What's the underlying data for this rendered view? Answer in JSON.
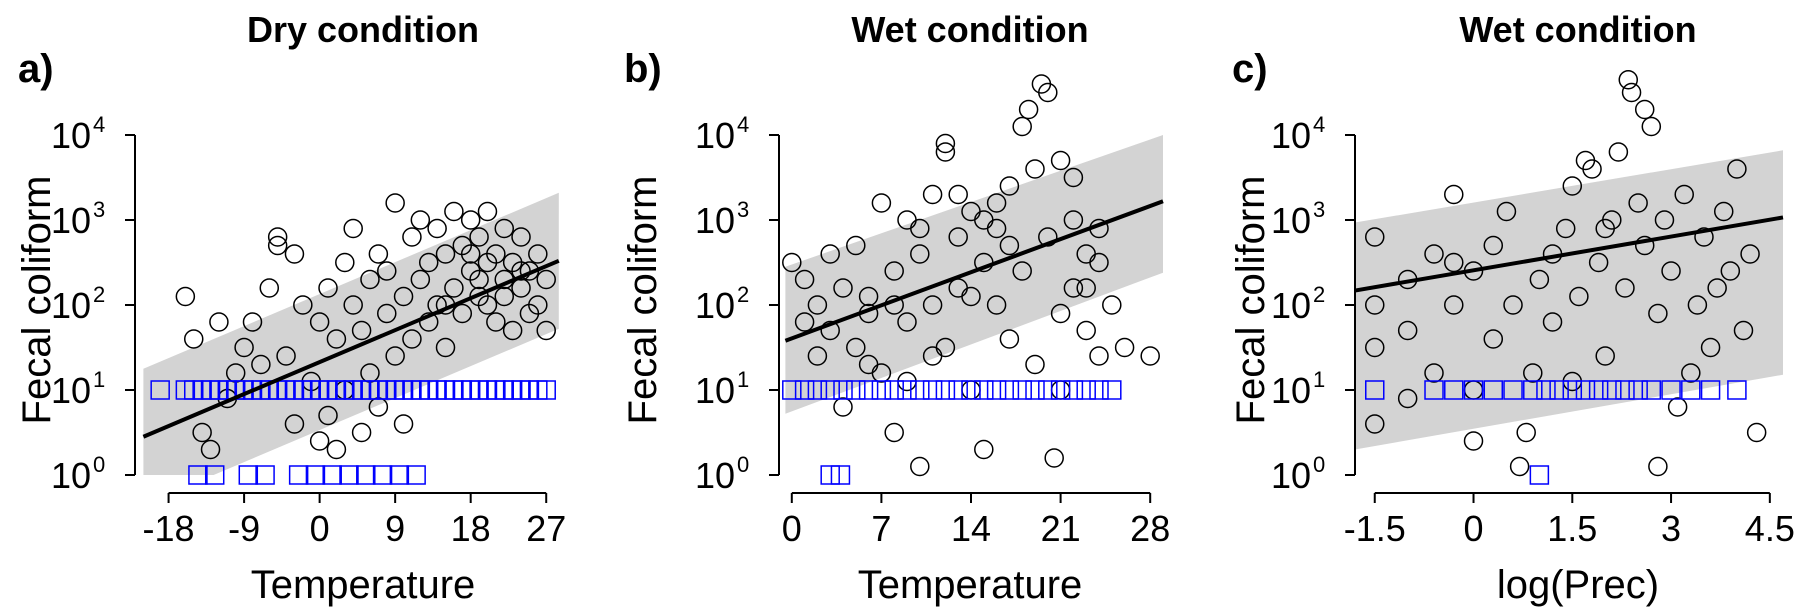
{
  "chart_data": [
    {
      "type": "scatter",
      "letter": "a)",
      "title": "Dry condition",
      "xlabel": "Temperature",
      "ylabel": "Fecal coliform",
      "xlim": [
        -22,
        29
      ],
      "ylim": [
        0,
        4
      ],
      "y_scale": "log10",
      "x_ticks": [
        -18,
        -9,
        0,
        9,
        18,
        27
      ],
      "x_tick_labels": [
        "-18",
        "-9",
        "0",
        "9",
        "18",
        "27"
      ],
      "y_ticks": [
        0,
        1,
        2,
        3,
        4
      ],
      "y_tick_base": "10",
      "y_tick_exponents": [
        "0",
        "1",
        "2",
        "3",
        "4"
      ],
      "fit_line": {
        "x": [
          -21,
          28.5
        ],
        "y": [
          0.45,
          2.52
        ]
      },
      "band_lower": {
        "x": [
          -21,
          28.5
        ],
        "y": [
          -0.35,
          1.72
        ]
      },
      "band_upper": {
        "x": [
          -21,
          28.5
        ],
        "y": [
          1.25,
          3.32
        ]
      },
      "censored_y": 1.0,
      "censored_x": [
        -19,
        -16,
        -15,
        -14,
        -13,
        -12,
        -11,
        -10,
        -9,
        -8,
        -7,
        -6,
        -5,
        -4,
        -3,
        -2,
        -1,
        0,
        1,
        2,
        3,
        4,
        5,
        6,
        7,
        8,
        9,
        10,
        11,
        12,
        13,
        14,
        15,
        16,
        17,
        18,
        19,
        20,
        21,
        22,
        23,
        24,
        25,
        26,
        27
      ],
      "censored_low_y": 0.0,
      "censored_low_x": [
        -14.5,
        -12.5,
        -8.5,
        -6.5,
        -2.5,
        -0.5,
        1.5,
        3.5,
        5.5,
        7.5,
        9.5,
        11.5
      ],
      "points": [
        [
          -16,
          2.1
        ],
        [
          -15,
          1.6
        ],
        [
          -13,
          0.3
        ],
        [
          -14,
          0.5
        ],
        [
          -11,
          0.9
        ],
        [
          -10,
          1.2
        ],
        [
          -9,
          1.5
        ],
        [
          -8,
          1.8
        ],
        [
          -7,
          1.3
        ],
        [
          -6,
          2.2
        ],
        [
          -5,
          2.7
        ],
        [
          -5,
          2.8
        ],
        [
          -4,
          1.4
        ],
        [
          -3,
          0.6
        ],
        [
          -2,
          2.0
        ],
        [
          -1,
          1.1
        ],
        [
          0,
          0.4
        ],
        [
          0,
          1.8
        ],
        [
          1,
          2.2
        ],
        [
          1,
          0.7
        ],
        [
          2,
          1.6
        ],
        [
          2,
          0.3
        ],
        [
          3,
          2.5
        ],
        [
          3,
          1.0
        ],
        [
          4,
          2.0
        ],
        [
          4,
          2.9
        ],
        [
          5,
          1.7
        ],
        [
          5,
          0.5
        ],
        [
          6,
          2.3
        ],
        [
          6,
          1.2
        ],
        [
          7,
          2.6
        ],
        [
          7,
          0.8
        ],
        [
          8,
          1.9
        ],
        [
          8,
          2.4
        ],
        [
          9,
          3.2
        ],
        [
          9,
          1.4
        ],
        [
          10,
          2.1
        ],
        [
          10,
          0.6
        ],
        [
          11,
          2.8
        ],
        [
          11,
          1.6
        ],
        [
          12,
          2.3
        ],
        [
          12,
          3.0
        ],
        [
          13,
          1.8
        ],
        [
          13,
          2.5
        ],
        [
          14,
          2.0
        ],
        [
          14,
          2.9
        ],
        [
          15,
          1.5
        ],
        [
          15,
          2.6
        ],
        [
          16,
          2.2
        ],
        [
          16,
          3.1
        ],
        [
          17,
          1.9
        ],
        [
          17,
          2.7
        ],
        [
          18,
          2.4
        ],
        [
          18,
          3.0
        ],
        [
          19,
          2.1
        ],
        [
          19,
          2.8
        ],
        [
          20,
          2.5
        ],
        [
          20,
          3.1
        ],
        [
          21,
          1.8
        ],
        [
          21,
          2.6
        ],
        [
          22,
          2.3
        ],
        [
          22,
          2.9
        ],
        [
          23,
          1.7
        ],
        [
          23,
          2.5
        ],
        [
          24,
          2.2
        ],
        [
          24,
          2.8
        ],
        [
          25,
          1.9
        ],
        [
          25,
          2.4
        ],
        [
          26,
          2.6
        ],
        [
          26,
          2.0
        ],
        [
          27,
          2.3
        ],
        [
          27,
          1.7
        ],
        [
          -12,
          1.8
        ],
        [
          -3,
          2.6
        ],
        [
          15,
          2.0
        ],
        [
          19,
          2.3
        ],
        [
          22,
          2.1
        ],
        [
          18,
          2.6
        ],
        [
          20,
          2.0
        ],
        [
          24,
          2.4
        ]
      ]
    },
    {
      "type": "scatter",
      "letter": "b)",
      "title": "Wet condition",
      "xlabel": "Temperature",
      "ylabel": "Fecal coliform",
      "xlim": [
        -1,
        29
      ],
      "ylim": [
        0,
        4
      ],
      "y_scale": "log10",
      "x_ticks": [
        0,
        7,
        14,
        21,
        28
      ],
      "x_tick_labels": [
        "0",
        "7",
        "14",
        "21",
        "28"
      ],
      "y_ticks": [
        0,
        1,
        2,
        3,
        4
      ],
      "y_tick_base": "10",
      "y_tick_exponents": [
        "0",
        "1",
        "2",
        "3",
        "4"
      ],
      "fit_line": {
        "x": [
          -0.5,
          29
        ],
        "y": [
          1.58,
          3.22
        ]
      },
      "band_lower": {
        "x": [
          -0.5,
          29
        ],
        "y": [
          0.72,
          2.38
        ]
      },
      "band_upper": {
        "x": [
          -0.5,
          29
        ],
        "y": [
          2.45,
          4.0
        ]
      },
      "censored_y": 1.0,
      "censored_x": [
        0,
        1,
        2,
        3,
        4,
        5,
        6,
        7,
        8,
        9,
        10,
        11,
        12,
        13,
        14,
        15,
        16,
        17,
        18,
        19,
        20,
        21,
        22,
        23,
        24,
        25
      ],
      "censored_low_y": 0.0,
      "censored_low_x": [
        3,
        3.8
      ],
      "points": [
        [
          0,
          2.5
        ],
        [
          1,
          1.8
        ],
        [
          1,
          2.3
        ],
        [
          2,
          2.0
        ],
        [
          2,
          1.4
        ],
        [
          3,
          2.6
        ],
        [
          3,
          1.7
        ],
        [
          4,
          2.2
        ],
        [
          4,
          0.8
        ],
        [
          5,
          1.5
        ],
        [
          5,
          2.7
        ],
        [
          6,
          2.1
        ],
        [
          6,
          1.9
        ],
        [
          7,
          3.2
        ],
        [
          7,
          1.2
        ],
        [
          8,
          2.4
        ],
        [
          8,
          0.5
        ],
        [
          9,
          3.0
        ],
        [
          9,
          1.8
        ],
        [
          10,
          2.6
        ],
        [
          10,
          0.1
        ],
        [
          11,
          3.3
        ],
        [
          11,
          2.0
        ],
        [
          12,
          3.8
        ],
        [
          12,
          1.5
        ],
        [
          13,
          2.8
        ],
        [
          13,
          2.2
        ],
        [
          14,
          3.1
        ],
        [
          14,
          1.0
        ],
        [
          15,
          2.5
        ],
        [
          15,
          0.3
        ],
        [
          16,
          2.9
        ],
        [
          16,
          2.0
        ],
        [
          17,
          3.4
        ],
        [
          17,
          1.6
        ],
        [
          18,
          4.1
        ],
        [
          18,
          2.4
        ],
        [
          19,
          3.6
        ],
        [
          19,
          1.3
        ],
        [
          20,
          4.5
        ],
        [
          20,
          2.8
        ],
        [
          21,
          3.7
        ],
        [
          21,
          1.9
        ],
        [
          22,
          3.0
        ],
        [
          22,
          2.2
        ],
        [
          23,
          2.6
        ],
        [
          23,
          1.7
        ],
        [
          24,
          2.5
        ],
        [
          24,
          2.9
        ],
        [
          25,
          2.0
        ],
        [
          26,
          1.5
        ],
        [
          28,
          1.4
        ],
        [
          18.5,
          4.3
        ],
        [
          19.5,
          4.6
        ],
        [
          20.5,
          0.2
        ],
        [
          12,
          3.9
        ],
        [
          15,
          3.0
        ],
        [
          10,
          2.9
        ],
        [
          8,
          2.0
        ],
        [
          6,
          1.3
        ],
        [
          16,
          3.2
        ],
        [
          14,
          2.1
        ],
        [
          13,
          3.3
        ],
        [
          22,
          3.5
        ],
        [
          23,
          2.2
        ],
        [
          21,
          1.0
        ],
        [
          24,
          1.4
        ],
        [
          17,
          2.7
        ],
        [
          11,
          1.4
        ],
        [
          9,
          1.1
        ]
      ]
    },
    {
      "type": "scatter",
      "letter": "c)",
      "title": "Wet condition",
      "xlabel": "log(Prec)",
      "ylabel": "Fecal coliform",
      "xlim": [
        -1.8,
        4.7
      ],
      "ylim": [
        0,
        4
      ],
      "y_scale": "log10",
      "x_ticks": [
        -1.5,
        0,
        1.5,
        3,
        4.5
      ],
      "x_tick_labels": [
        "-1.5",
        "0",
        "1.5",
        "3",
        "4.5"
      ],
      "y_ticks": [
        0,
        1,
        2,
        3,
        4
      ],
      "y_tick_base": "10",
      "y_tick_exponents": [
        "0",
        "1",
        "2",
        "3",
        "4"
      ],
      "fit_line": {
        "x": [
          -1.8,
          4.7
        ],
        "y": [
          2.17,
          3.03
        ]
      },
      "band_lower": {
        "x": [
          -1.8,
          4.7
        ],
        "y": [
          0.3,
          1.18
        ]
      },
      "band_upper": {
        "x": [
          -1.8,
          4.7
        ],
        "y": [
          2.97,
          3.82
        ]
      },
      "censored_y": 1.0,
      "censored_x": [
        -1.5,
        -0.6,
        -0.3,
        0,
        0.3,
        0.6,
        0.9,
        1.1,
        1.3,
        1.5,
        1.7,
        1.9,
        2.1,
        2.3,
        2.5,
        2.7,
        3.0,
        3.3,
        3.6,
        4.0
      ],
      "censored_low_y": 0.0,
      "censored_low_x": [
        1.0
      ],
      "points": [
        [
          -1.5,
          2.8
        ],
        [
          -1.5,
          2.0
        ],
        [
          -1.5,
          1.5
        ],
        [
          -1.5,
          0.6
        ],
        [
          -1.0,
          2.3
        ],
        [
          -1.0,
          1.7
        ],
        [
          -0.6,
          2.6
        ],
        [
          -0.6,
          1.2
        ],
        [
          -0.3,
          3.3
        ],
        [
          -0.3,
          2.0
        ],
        [
          0,
          2.4
        ],
        [
          0,
          1.0
        ],
        [
          0,
          0.4
        ],
        [
          0.3,
          2.7
        ],
        [
          0.3,
          1.6
        ],
        [
          0.5,
          3.1
        ],
        [
          0.6,
          2.0
        ],
        [
          0.8,
          0.5
        ],
        [
          1.0,
          2.3
        ],
        [
          1.2,
          1.8
        ],
        [
          1.4,
          2.9
        ],
        [
          1.5,
          3.4
        ],
        [
          1.6,
          2.1
        ],
        [
          1.8,
          3.6
        ],
        [
          1.9,
          2.5
        ],
        [
          2.0,
          1.4
        ],
        [
          2.1,
          3.0
        ],
        [
          2.2,
          3.8
        ],
        [
          2.3,
          2.2
        ],
        [
          2.4,
          4.5
        ],
        [
          2.5,
          3.2
        ],
        [
          2.6,
          2.7
        ],
        [
          2.7,
          4.1
        ],
        [
          2.8,
          1.9
        ],
        [
          2.9,
          3.0
        ],
        [
          3.0,
          2.4
        ],
        [
          3.1,
          0.8
        ],
        [
          3.2,
          3.3
        ],
        [
          3.4,
          2.0
        ],
        [
          3.5,
          2.8
        ],
        [
          3.6,
          1.5
        ],
        [
          3.8,
          3.1
        ],
        [
          3.9,
          2.4
        ],
        [
          4.0,
          3.6
        ],
        [
          4.1,
          1.7
        ],
        [
          4.2,
          2.6
        ],
        [
          4.3,
          0.5
        ],
        [
          2.6,
          4.3
        ],
        [
          2.35,
          4.65
        ],
        [
          1.7,
          3.7
        ],
        [
          0.9,
          1.2
        ],
        [
          -0.3,
          2.5
        ],
        [
          -1.0,
          0.9
        ],
        [
          1.2,
          2.6
        ],
        [
          2.0,
          2.9
        ],
        [
          3.3,
          1.2
        ],
        [
          2.8,
          0.1
        ],
        [
          0.7,
          0.1
        ],
        [
          3.7,
          2.2
        ],
        [
          1.5,
          1.1
        ]
      ]
    }
  ]
}
